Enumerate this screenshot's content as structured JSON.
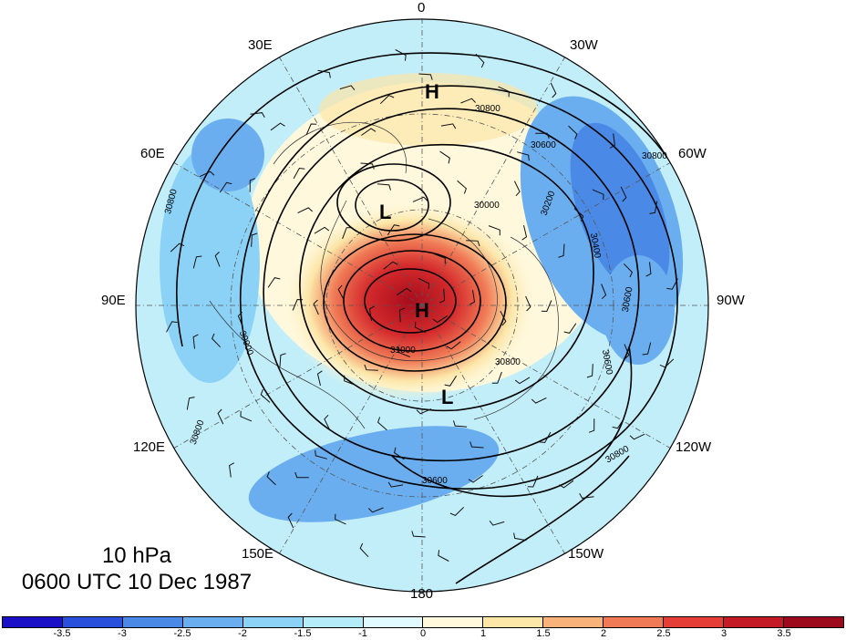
{
  "map": {
    "projection": "north-polar-stereographic",
    "center_feature": "north-pole",
    "contour_field": "geopotential height",
    "shading_field": "anomaly",
    "wind_barbs": true,
    "coastlines": true,
    "graticule": "dash-dot"
  },
  "longitude_labels": [
    "0",
    "30W",
    "60W",
    "90W",
    "120W",
    "150W",
    "180",
    "150E",
    "120E",
    "90E",
    "60E",
    "30E"
  ],
  "pressure_centers": [
    {
      "type": "H",
      "label": "H"
    },
    {
      "type": "H",
      "label": "H"
    },
    {
      "type": "L",
      "label": "L"
    },
    {
      "type": "L",
      "label": "L"
    }
  ],
  "contour_labels": [
    "30800",
    "30600",
    "30800",
    "30000",
    "30200",
    "30400",
    "30600",
    "30600",
    "30800",
    "30800",
    "31000",
    "30600",
    "30900",
    "30800",
    "30800"
  ],
  "caption": {
    "level": "10 hPa",
    "datetime": "0600 UTC 10 Dec 1987"
  },
  "colorbar": {
    "colors": [
      "#1a10c8",
      "#2850dc",
      "#4a8ae6",
      "#6aaef0",
      "#8cd2f6",
      "#b4ecfa",
      "#e0faff",
      "#fff8dc",
      "#fce6a8",
      "#f8b27a",
      "#f07a56",
      "#e43e36",
      "#c41a26",
      "#9c0a1c"
    ],
    "tick_labels": [
      "-3.5",
      "-3",
      "-2.5",
      "-2",
      "-1.5",
      "-1",
      "0",
      "1",
      "1.5",
      "2",
      "2.5",
      "3",
      "3.5"
    ]
  }
}
